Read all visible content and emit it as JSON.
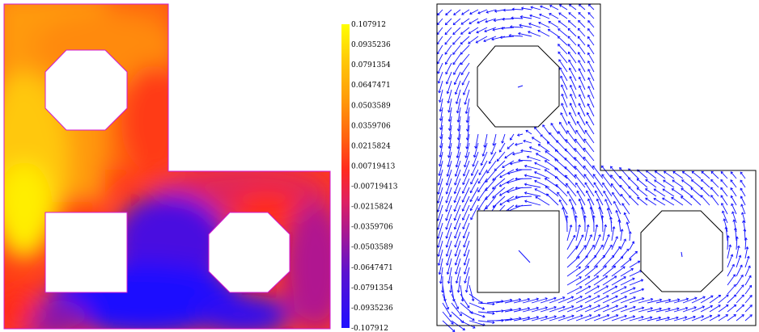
{
  "left_panel": {
    "description_kind": "scalar field contour plot on L-shaped domain with holes",
    "colormap": [
      "#1f10ff",
      "#3a0fe0",
      "#7a12b0",
      "#b0188a",
      "#e02060",
      "#ff2a1e",
      "#ff5a12",
      "#ff8c0a",
      "#ffb808",
      "#ffe000",
      "#ffff00"
    ]
  },
  "colorbar": {
    "tick_labels": [
      "0.107912",
      "0.0935236",
      "0.0791354",
      "0.0647471",
      "0.0503589",
      "0.0359706",
      "0.0215824",
      "0.00719413",
      "-0.00719413",
      "-0.0215824",
      "-0.0359706",
      "-0.0503589",
      "-0.0647471",
      "-0.0791354",
      "-0.0935236",
      "-0.107912"
    ]
  },
  "right_panel": {
    "arrow_color": "#1010ff",
    "outline_color": "#000000"
  }
}
